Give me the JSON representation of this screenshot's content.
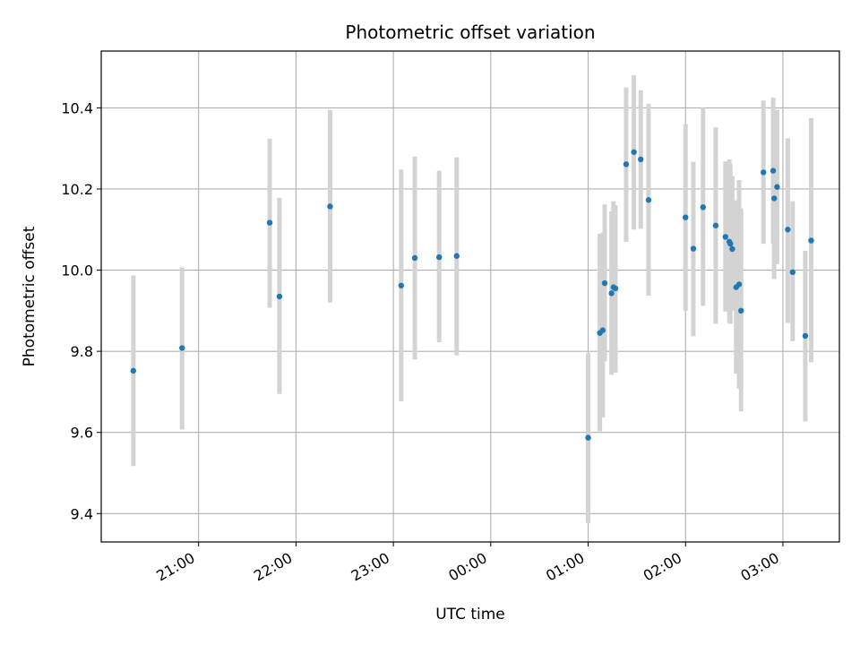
{
  "chart_data": {
    "type": "scatter",
    "title": "Photometric offset variation",
    "xlabel": "UTC time",
    "ylabel": "Photometric offset",
    "x_unit": "time of day (UTC), hours past midnight of the first day; values above 24 are the following day",
    "xlim": [
      20.0,
      27.58
    ],
    "ylim": [
      9.33,
      10.54
    ],
    "x_ticks": [
      {
        "value": 21,
        "label": "21:00"
      },
      {
        "value": 22,
        "label": "22:00"
      },
      {
        "value": 23,
        "label": "23:00"
      },
      {
        "value": 24,
        "label": "00:00"
      },
      {
        "value": 25,
        "label": "01:00"
      },
      {
        "value": 26,
        "label": "02:00"
      },
      {
        "value": 27,
        "label": "03:00"
      }
    ],
    "y_ticks": [
      {
        "value": 9.4,
        "label": "9.4"
      },
      {
        "value": 9.6,
        "label": "9.6"
      },
      {
        "value": 9.8,
        "label": "9.8"
      },
      {
        "value": 10.0,
        "label": "10.0"
      },
      {
        "value": 10.2,
        "label": "10.2"
      },
      {
        "value": 10.4,
        "label": "10.4"
      }
    ],
    "grid": true,
    "point_color": "#1f77b4",
    "errorbar_color": "#d3d3d3",
    "points": [
      {
        "x": 20.33,
        "y": 9.752,
        "lo": 9.517,
        "hi": 9.987
      },
      {
        "x": 20.83,
        "y": 9.808,
        "lo": 9.607,
        "hi": 10.007
      },
      {
        "x": 21.73,
        "y": 10.117,
        "lo": 9.907,
        "hi": 10.324
      },
      {
        "x": 21.83,
        "y": 9.935,
        "lo": 9.695,
        "hi": 10.178
      },
      {
        "x": 22.35,
        "y": 10.157,
        "lo": 9.92,
        "hi": 10.395
      },
      {
        "x": 23.08,
        "y": 9.962,
        "lo": 9.677,
        "hi": 10.248
      },
      {
        "x": 23.22,
        "y": 10.03,
        "lo": 9.78,
        "hi": 10.28
      },
      {
        "x": 23.47,
        "y": 10.032,
        "lo": 9.822,
        "hi": 10.245
      },
      {
        "x": 23.65,
        "y": 10.035,
        "lo": 9.79,
        "hi": 10.278
      },
      {
        "x": 25.0,
        "y": 9.587,
        "lo": 9.377,
        "hi": 9.795
      },
      {
        "x": 25.12,
        "y": 9.845,
        "lo": 9.603,
        "hi": 10.09
      },
      {
        "x": 25.15,
        "y": 9.852,
        "lo": 9.637,
        "hi": 10.092
      },
      {
        "x": 25.17,
        "y": 9.968,
        "lo": 9.775,
        "hi": 10.162
      },
      {
        "x": 25.24,
        "y": 9.943,
        "lo": 9.742,
        "hi": 10.145
      },
      {
        "x": 25.26,
        "y": 9.958,
        "lo": 9.748,
        "hi": 10.17
      },
      {
        "x": 25.28,
        "y": 9.955,
        "lo": 9.748,
        "hi": 10.16
      },
      {
        "x": 25.39,
        "y": 10.261,
        "lo": 10.07,
        "hi": 10.45
      },
      {
        "x": 25.47,
        "y": 10.291,
        "lo": 10.1,
        "hi": 10.48
      },
      {
        "x": 25.54,
        "y": 10.273,
        "lo": 10.102,
        "hi": 10.443
      },
      {
        "x": 25.62,
        "y": 10.173,
        "lo": 9.937,
        "hi": 10.41
      },
      {
        "x": 26.0,
        "y": 10.13,
        "lo": 9.9,
        "hi": 10.36
      },
      {
        "x": 26.08,
        "y": 10.053,
        "lo": 9.837,
        "hi": 10.267
      },
      {
        "x": 26.18,
        "y": 10.155,
        "lo": 9.912,
        "hi": 10.4
      },
      {
        "x": 26.31,
        "y": 10.11,
        "lo": 9.868,
        "hi": 10.352
      },
      {
        "x": 26.41,
        "y": 10.082,
        "lo": 9.898,
        "hi": 10.268
      },
      {
        "x": 26.45,
        "y": 10.07,
        "lo": 9.87,
        "hi": 10.273
      },
      {
        "x": 26.46,
        "y": 10.065,
        "lo": 9.868,
        "hi": 10.262
      },
      {
        "x": 26.48,
        "y": 10.052,
        "lo": 9.9,
        "hi": 10.232
      },
      {
        "x": 26.52,
        "y": 9.958,
        "lo": 9.745,
        "hi": 10.172
      },
      {
        "x": 26.55,
        "y": 9.965,
        "lo": 9.708,
        "hi": 10.222
      },
      {
        "x": 26.57,
        "y": 9.9,
        "lo": 9.652,
        "hi": 10.152
      },
      {
        "x": 26.8,
        "y": 10.241,
        "lo": 10.065,
        "hi": 10.418
      },
      {
        "x": 26.9,
        "y": 10.245,
        "lo": 10.065,
        "hi": 10.425
      },
      {
        "x": 26.91,
        "y": 10.177,
        "lo": 9.978,
        "hi": 10.378
      },
      {
        "x": 26.94,
        "y": 10.205,
        "lo": 10.015,
        "hi": 10.395
      },
      {
        "x": 27.05,
        "y": 10.1,
        "lo": 9.87,
        "hi": 10.325
      },
      {
        "x": 27.1,
        "y": 9.995,
        "lo": 9.825,
        "hi": 10.17
      },
      {
        "x": 27.23,
        "y": 9.838,
        "lo": 9.627,
        "hi": 10.048
      },
      {
        "x": 27.29,
        "y": 10.073,
        "lo": 9.773,
        "hi": 10.375
      }
    ]
  }
}
